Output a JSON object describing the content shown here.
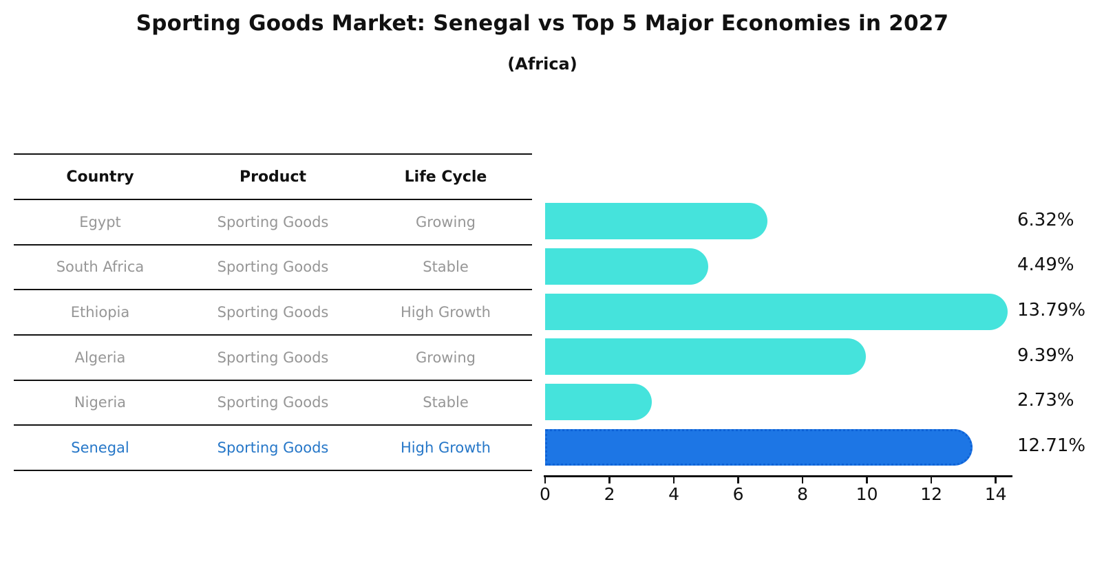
{
  "title": "Sporting Goods Market: Senegal vs Top 5 Major Economies in 2027",
  "subtitle": "(Africa)",
  "table": {
    "headers": [
      "Country",
      "Product",
      "Life Cycle"
    ],
    "rows": [
      {
        "country": "Egypt",
        "product": "Sporting Goods",
        "life_cycle": "Growing",
        "highlight": false
      },
      {
        "country": "South Africa",
        "product": "Sporting Goods",
        "life_cycle": "Stable",
        "highlight": false
      },
      {
        "country": "Ethiopia",
        "product": "Sporting Goods",
        "life_cycle": "High Growth",
        "highlight": false
      },
      {
        "country": "Algeria",
        "product": "Sporting Goods",
        "life_cycle": "Growing",
        "highlight": false
      },
      {
        "country": "Nigeria",
        "product": "Sporting Goods",
        "life_cycle": "Stable",
        "highlight": false
      },
      {
        "country": "Senegal",
        "product": "Sporting Goods",
        "life_cycle": "High Growth",
        "highlight": true
      }
    ]
  },
  "chart_data": {
    "type": "bar",
    "orientation": "horizontal",
    "title": "Sporting Goods Market: Senegal vs Top 5 Major Economies in 2027",
    "subtitle": "(Africa)",
    "categories": [
      "Egypt",
      "South Africa",
      "Ethiopia",
      "Algeria",
      "Nigeria",
      "Senegal"
    ],
    "values": [
      6.32,
      4.49,
      13.79,
      9.39,
      2.73,
      12.71
    ],
    "value_labels": [
      "6.32%",
      "4.49%",
      "13.79%",
      "9.39%",
      "2.73%",
      "12.71%"
    ],
    "unit": "%",
    "xlim": [
      0,
      14.5
    ],
    "x_ticks": [
      0,
      2,
      4,
      6,
      8,
      10,
      12,
      14
    ],
    "grid": false,
    "legend": false,
    "highlight_category": "Senegal",
    "colors": {
      "default_bar": "#45E3DC",
      "highlight_bar": "#1D76E5",
      "highlight_border": "#0E62D6",
      "table_text": "#969696",
      "table_header": "#111111",
      "highlight_text": "#2677C8",
      "value_label": "#111111",
      "axis": "#111111"
    }
  }
}
